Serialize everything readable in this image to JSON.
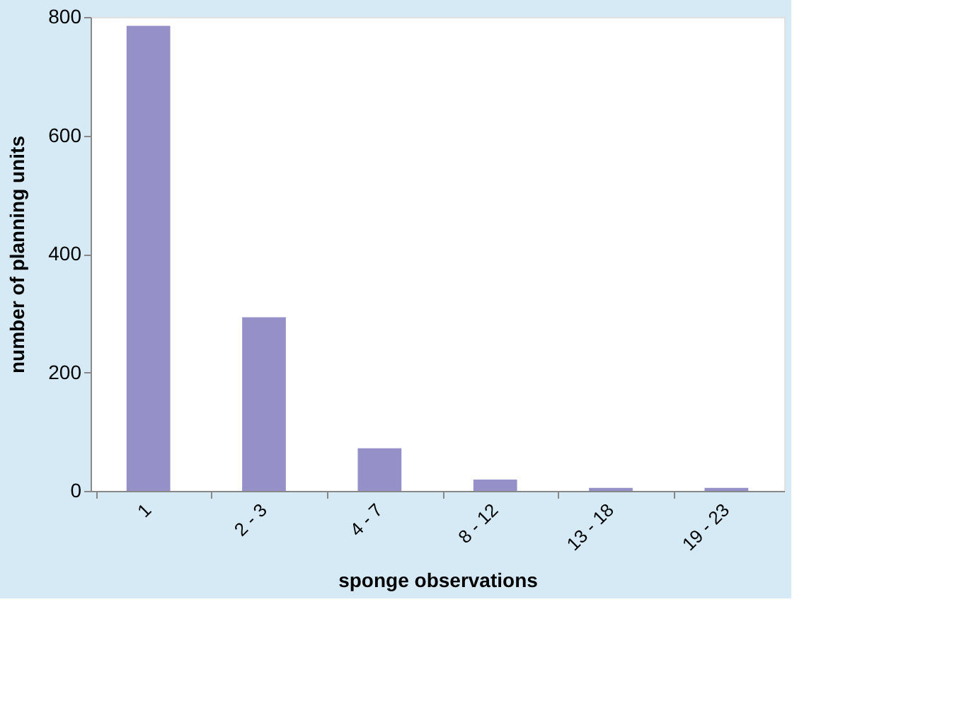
{
  "chart_data": {
    "type": "bar",
    "xlabel": "sponge observations",
    "ylabel": "number of planning units",
    "categories": [
      "1",
      "2 - 3",
      "4 - 7",
      "8 - 12",
      "13 - 18",
      "19 - 23"
    ],
    "values": [
      785,
      293,
      72,
      19,
      5,
      5
    ],
    "color": "#9590c8",
    "ylim": [
      0,
      800
    ],
    "yticks": [
      0,
      200,
      400,
      600,
      800
    ],
    "grid": false
  }
}
